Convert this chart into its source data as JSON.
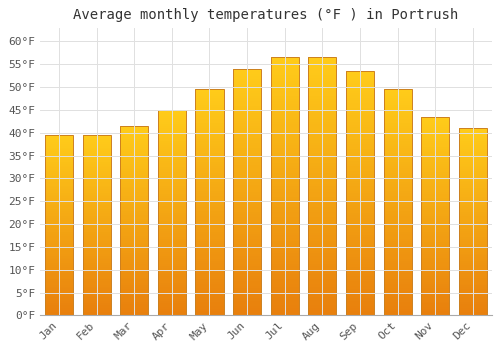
{
  "title": "Average monthly temperatures (°F ) in Portrush",
  "months": [
    "Jan",
    "Feb",
    "Mar",
    "Apr",
    "May",
    "Jun",
    "Jul",
    "Aug",
    "Sep",
    "Oct",
    "Nov",
    "Dec"
  ],
  "values": [
    39.5,
    39.5,
    41.5,
    45.0,
    49.5,
    54.0,
    56.5,
    56.5,
    53.5,
    49.5,
    43.5,
    41.0
  ],
  "bar_color_top": "#FFCC44",
  "bar_color_bottom": "#E88010",
  "bar_color_mid": "#FFB020",
  "bar_edge_color": "#CC8020",
  "background_color": "#ffffff",
  "grid_color": "#e0e0e0",
  "ylim": [
    0,
    63
  ],
  "yticks": [
    0,
    5,
    10,
    15,
    20,
    25,
    30,
    35,
    40,
    45,
    50,
    55,
    60
  ],
  "title_fontsize": 10,
  "tick_fontsize": 8,
  "bar_width": 0.75
}
